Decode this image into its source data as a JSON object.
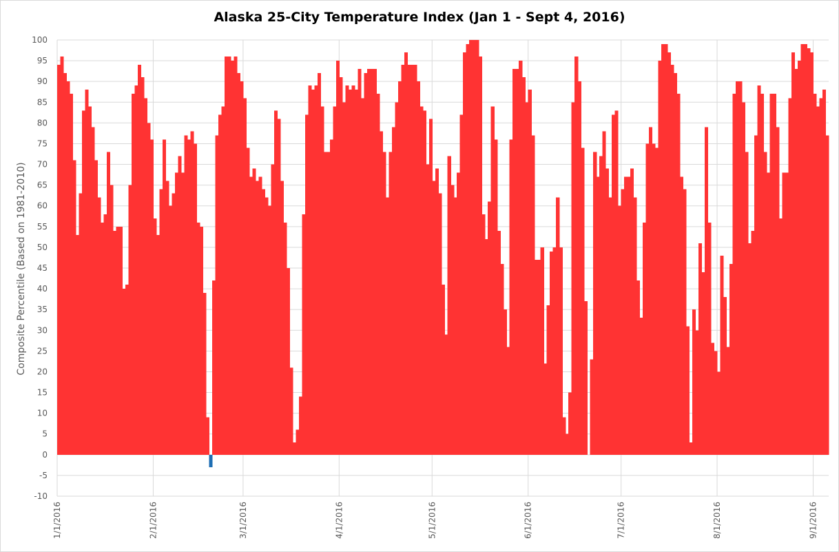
{
  "chart_data": {
    "type": "bar",
    "title": "Alaska 25-City Temperature Index (Jan 1 - Sept 4, 2016)",
    "ylabel": "Composite Percentile (Based on 1981-2010)",
    "xlabel": "",
    "ylim": [
      -10,
      100
    ],
    "yticks": [
      -10,
      -5,
      0,
      5,
      10,
      15,
      20,
      25,
      30,
      35,
      40,
      45,
      50,
      55,
      60,
      65,
      70,
      75,
      80,
      85,
      90,
      95,
      100
    ],
    "grid": true,
    "start_date": "2016-01-01",
    "end_date": "2016-09-04",
    "x_tick_labels": [
      "1/1/2016",
      "2/1/2016",
      "3/1/2016",
      "4/1/2016",
      "5/1/2016",
      "6/1/2016",
      "7/1/2016",
      "8/1/2016",
      "9/1/2016"
    ],
    "positive_color": "#ff3333",
    "negative_color": "#1f6fb4",
    "values": [
      94,
      96,
      92,
      90,
      87,
      71,
      53,
      63,
      83,
      88,
      84,
      79,
      71,
      62,
      56,
      58,
      73,
      65,
      54,
      55,
      55,
      40,
      41,
      65,
      87,
      89,
      94,
      91,
      86,
      80,
      76,
      57,
      53,
      64,
      76,
      66,
      60,
      63,
      68,
      72,
      68,
      77,
      76,
      78,
      75,
      56,
      55,
      39,
      9,
      -3,
      42,
      77,
      82,
      84,
      96,
      96,
      95,
      96,
      92,
      90,
      86,
      74,
      67,
      69,
      66,
      67,
      64,
      62,
      60,
      70,
      83,
      81,
      66,
      56,
      45,
      21,
      3,
      6,
      14,
      58,
      82,
      89,
      88,
      89,
      92,
      84,
      73,
      73,
      76,
      84,
      95,
      91,
      85,
      89,
      88,
      89,
      88,
      93,
      86,
      92,
      93,
      93,
      93,
      87,
      78,
      73,
      62,
      73,
      79,
      85,
      90,
      94,
      97,
      94,
      94,
      94,
      90,
      84,
      83,
      70,
      81,
      66,
      69,
      63,
      41,
      29,
      72,
      65,
      62,
      68,
      82,
      97,
      99,
      100,
      100,
      100,
      96,
      58,
      52,
      61,
      84,
      76,
      54,
      46,
      35,
      26,
      76,
      93,
      93,
      95,
      91,
      85,
      88,
      77,
      47,
      47,
      50,
      22,
      36,
      49,
      50,
      62,
      50,
      9,
      5,
      15,
      85,
      96,
      90,
      74,
      37,
      0,
      23,
      73,
      67,
      72,
      78,
      69,
      62,
      82,
      83,
      60,
      64,
      67,
      67,
      69,
      62,
      42,
      33,
      56,
      75,
      79,
      75,
      74,
      95,
      99,
      99,
      97,
      94,
      92,
      87,
      67,
      64,
      31,
      3,
      35,
      30,
      51,
      44,
      79,
      56,
      27,
      25,
      20,
      48,
      38,
      26,
      46,
      87,
      90,
      90,
      85,
      73,
      51,
      54,
      77,
      89,
      87,
      73,
      68,
      87,
      87,
      79,
      57,
      68,
      68,
      86,
      97,
      93,
      95,
      99,
      99,
      98,
      97,
      87,
      84,
      86,
      88,
      77
    ]
  }
}
